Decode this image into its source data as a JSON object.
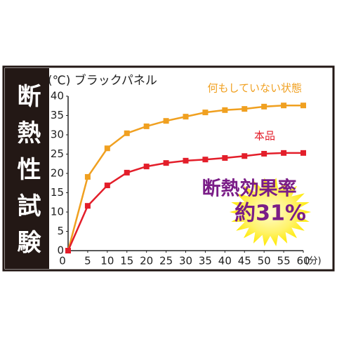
{
  "chart_data": {
    "type": "line",
    "side_title": "断熱性試験",
    "y_label": "(℃) ブラックパネル",
    "x_label": "(分)",
    "annotations": [
      "断熱効果率",
      "約31%"
    ],
    "x": [
      0,
      5,
      10,
      15,
      20,
      25,
      30,
      35,
      40,
      45,
      50,
      55,
      60
    ],
    "series": [
      {
        "name": "何もしていない状態",
        "color": "#f0a020",
        "values": [
          0,
          19.1,
          26.5,
          30.4,
          32.2,
          33.6,
          34.7,
          35.8,
          36.4,
          36.7,
          37.3,
          37.6,
          37.6
        ]
      },
      {
        "name": "本品",
        "color": "#e31e2a",
        "values": [
          0,
          11.6,
          16.9,
          20.2,
          21.8,
          22.7,
          23.3,
          23.6,
          24,
          24.5,
          25.1,
          25.3,
          25.3
        ]
      }
    ],
    "xlim": [
      0,
      60
    ],
    "xticks": [
      0,
      5,
      10,
      15,
      20,
      25,
      30,
      35,
      40,
      45,
      50,
      55,
      60
    ],
    "ylim": [
      0,
      40
    ],
    "yticks": [
      0,
      5,
      10,
      15,
      20,
      25,
      30,
      35,
      40
    ]
  }
}
